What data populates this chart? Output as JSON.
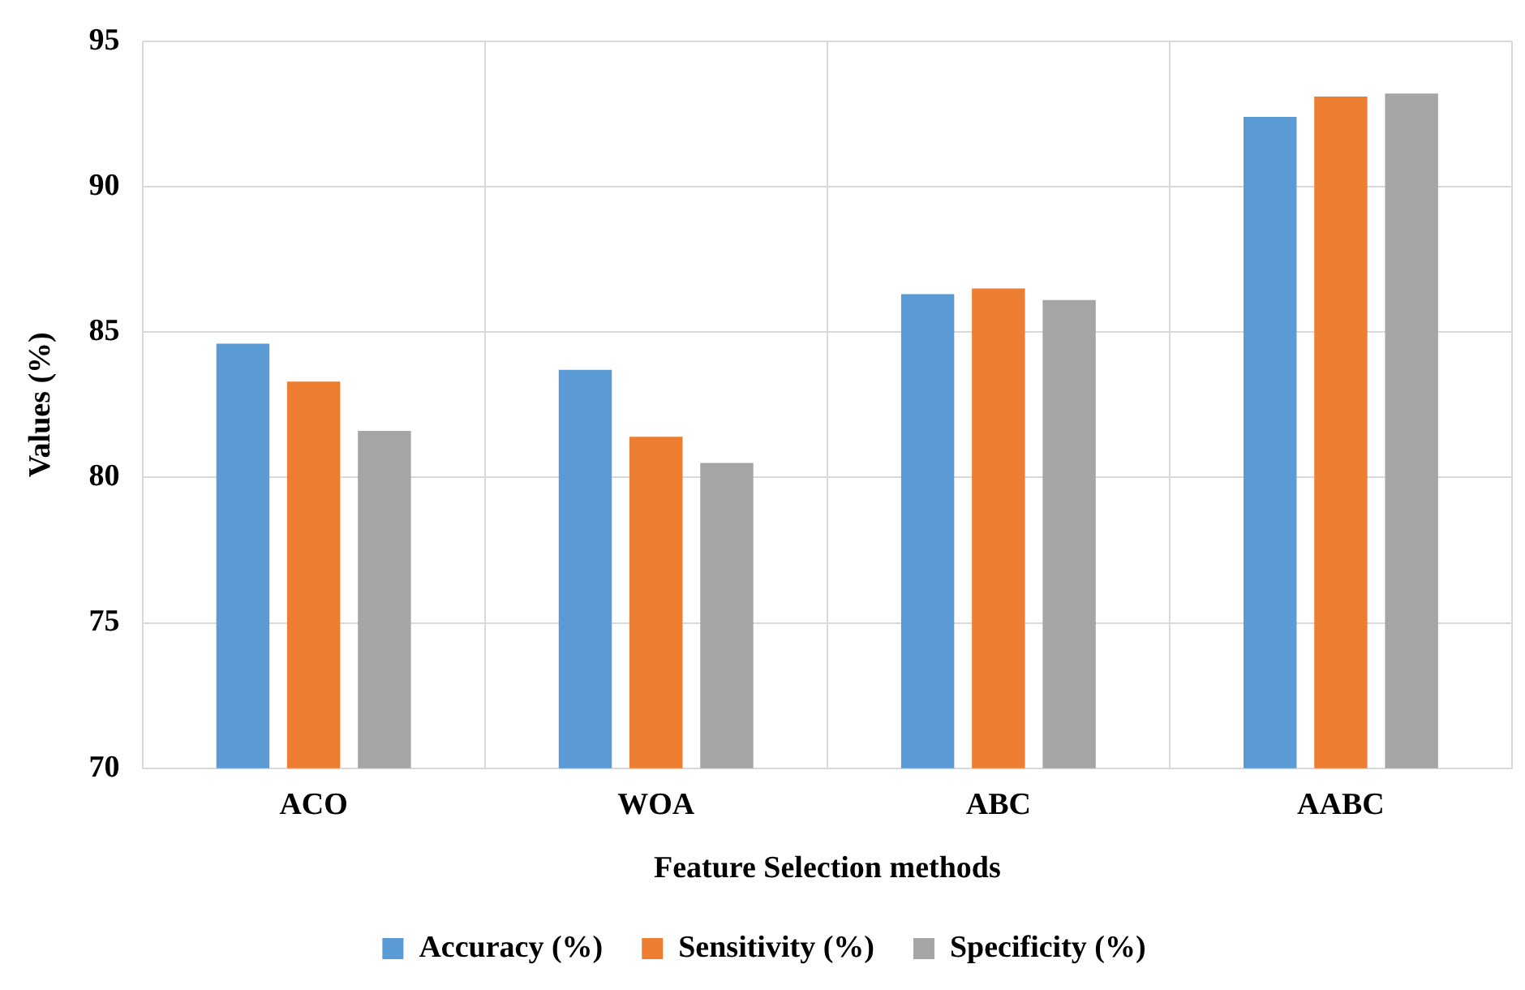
{
  "chart_data": {
    "type": "bar",
    "xlabel": "Feature Selection methods",
    "ylabel": "Values (%)",
    "categories": [
      "ACO",
      "WOA",
      "ABC",
      "AABC"
    ],
    "series": [
      {
        "name": "Accuracy (%)",
        "color": "#5b9bd5",
        "values": [
          84.6,
          83.7,
          86.3,
          92.4
        ]
      },
      {
        "name": "Sensitivity (%)",
        "color": "#ed7d31",
        "values": [
          83.3,
          81.4,
          86.5,
          93.1
        ]
      },
      {
        "name": "Specificity (%)",
        "color": "#a5a5a5",
        "values": [
          81.6,
          80.5,
          86.1,
          93.2
        ]
      }
    ],
    "ylim": [
      70,
      95
    ],
    "yticks": [
      70,
      75,
      80,
      85,
      90,
      95
    ],
    "grid": true,
    "legend": "bottom"
  }
}
